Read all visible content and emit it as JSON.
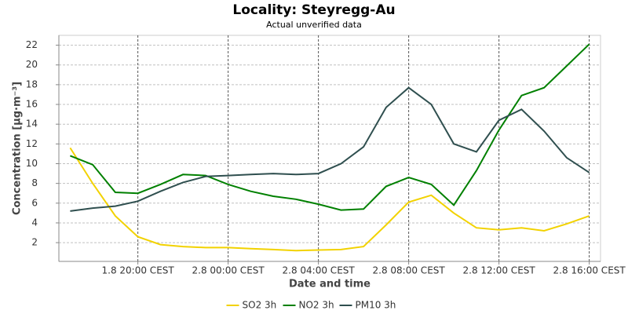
{
  "chart_data": {
    "type": "line",
    "title": "Locality: Steyregg-Au",
    "subtitle": "Actual unverified data",
    "x_label": "Date and time",
    "y_label": "Concentration [µg·m⁻³]",
    "categories": [
      null,
      null,
      null,
      "1.8 20:00 CEST",
      null,
      null,
      null,
      "2.8 00:00 CEST",
      null,
      null,
      null,
      "2.8 04:00 CEST",
      null,
      null,
      null,
      "2.8 08:00 CEST",
      null,
      null,
      null,
      "2.8 12:00 CEST",
      null,
      null,
      null,
      "2.8 16:00 CEST"
    ],
    "series": [
      {
        "name": "SO2 3h",
        "color": "#f2d200",
        "values": [
          11.6,
          8.0,
          4.7,
          2.6,
          1.8,
          1.6,
          1.5,
          1.5,
          1.4,
          1.3,
          1.2,
          1.25,
          1.3,
          1.6,
          3.8,
          6.1,
          6.8,
          5.0,
          3.5,
          3.3,
          3.5,
          3.2,
          3.9,
          4.7
        ]
      },
      {
        "name": "NO2 3h",
        "color": "#008000",
        "values": [
          10.8,
          9.9,
          7.1,
          7.0,
          7.9,
          8.9,
          8.8,
          7.9,
          7.2,
          6.7,
          6.4,
          5.9,
          5.3,
          5.4,
          7.7,
          8.6,
          7.9,
          5.8,
          9.3,
          13.4,
          16.9,
          17.7,
          19.9,
          22.1
        ]
      },
      {
        "name": "PM10 3h",
        "color": "#2f4f4f",
        "values": [
          5.2,
          5.5,
          5.7,
          6.2,
          7.2,
          8.1,
          8.7,
          8.8,
          8.9,
          9.0,
          8.9,
          9.0,
          10.0,
          11.7,
          15.7,
          17.7,
          16.0,
          12.0,
          11.2,
          14.4,
          15.5,
          13.3,
          10.6,
          9.1
        ]
      }
    ],
    "ylim": [
      0.1,
      23
    ],
    "yticks": [
      2,
      4,
      6,
      8,
      10,
      12,
      14,
      16,
      18,
      20,
      22
    ],
    "grid": true
  }
}
